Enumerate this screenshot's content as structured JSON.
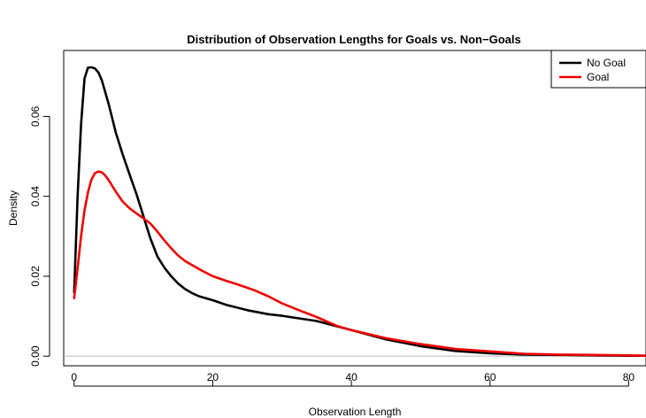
{
  "chart_data": {
    "type": "line",
    "title": "Distribution of Observation Lengths for Goals vs. Non−Goals",
    "xlabel": "Observation Length",
    "ylabel": "Density",
    "xlim": [
      -1.5,
      82.5
    ],
    "ylim": [
      -0.0024,
      0.0765
    ],
    "x_ticks": [
      0,
      20,
      40,
      60,
      80
    ],
    "x_tick_labels": [
      "0",
      "20",
      "40",
      "60",
      "80"
    ],
    "y_ticks": [
      0.0,
      0.02,
      0.04,
      0.06
    ],
    "y_tick_labels": [
      "0.00",
      "0.02",
      "0.04",
      "0.06"
    ],
    "baseline": 0,
    "legend": {
      "position": "top-right"
    },
    "series": [
      {
        "name": "No Goal",
        "color": "#000000",
        "x": [
          0,
          0.5,
          1,
          1.5,
          2,
          2.5,
          3,
          3.5,
          4,
          5,
          6,
          7,
          8,
          9,
          10,
          11,
          12,
          13,
          14,
          15,
          16,
          17,
          18,
          20,
          22,
          25,
          28,
          30,
          35,
          40,
          45,
          50,
          55,
          60,
          65,
          70,
          75,
          80,
          82.5
        ],
        "y": [
          0.016,
          0.04,
          0.058,
          0.0695,
          0.0722,
          0.0723,
          0.072,
          0.071,
          0.069,
          0.063,
          0.056,
          0.0505,
          0.0455,
          0.0405,
          0.035,
          0.0295,
          0.025,
          0.0222,
          0.02,
          0.0182,
          0.0168,
          0.0158,
          0.015,
          0.014,
          0.0128,
          0.0115,
          0.0105,
          0.0101,
          0.0088,
          0.0065,
          0.0042,
          0.0025,
          0.0013,
          0.0007,
          0.0004,
          0.0003,
          0.0002,
          0.0001,
          0.0001
        ]
      },
      {
        "name": "Goal",
        "color": "#ee0000",
        "x": [
          0,
          0.5,
          1,
          1.5,
          2,
          2.5,
          3,
          3.5,
          4,
          4.5,
          5,
          6,
          7,
          8,
          9,
          10,
          11,
          12,
          13,
          14,
          15,
          16,
          18,
          20,
          22,
          24,
          26,
          28,
          30,
          32,
          35,
          38,
          40,
          45,
          50,
          55,
          60,
          65,
          70,
          75,
          80,
          82.5
        ],
        "y": [
          0.0145,
          0.022,
          0.03,
          0.0365,
          0.041,
          0.0442,
          0.0458,
          0.0462,
          0.046,
          0.0452,
          0.044,
          0.0412,
          0.0387,
          0.037,
          0.0357,
          0.0345,
          0.0332,
          0.0312,
          0.029,
          0.027,
          0.0252,
          0.0238,
          0.0218,
          0.02,
          0.0188,
          0.0177,
          0.0165,
          0.015,
          0.0132,
          0.0118,
          0.0098,
          0.0075,
          0.0065,
          0.0045,
          0.003,
          0.0018,
          0.0012,
          0.0006,
          0.0004,
          0.0003,
          0.0002,
          0.0001
        ]
      }
    ]
  }
}
